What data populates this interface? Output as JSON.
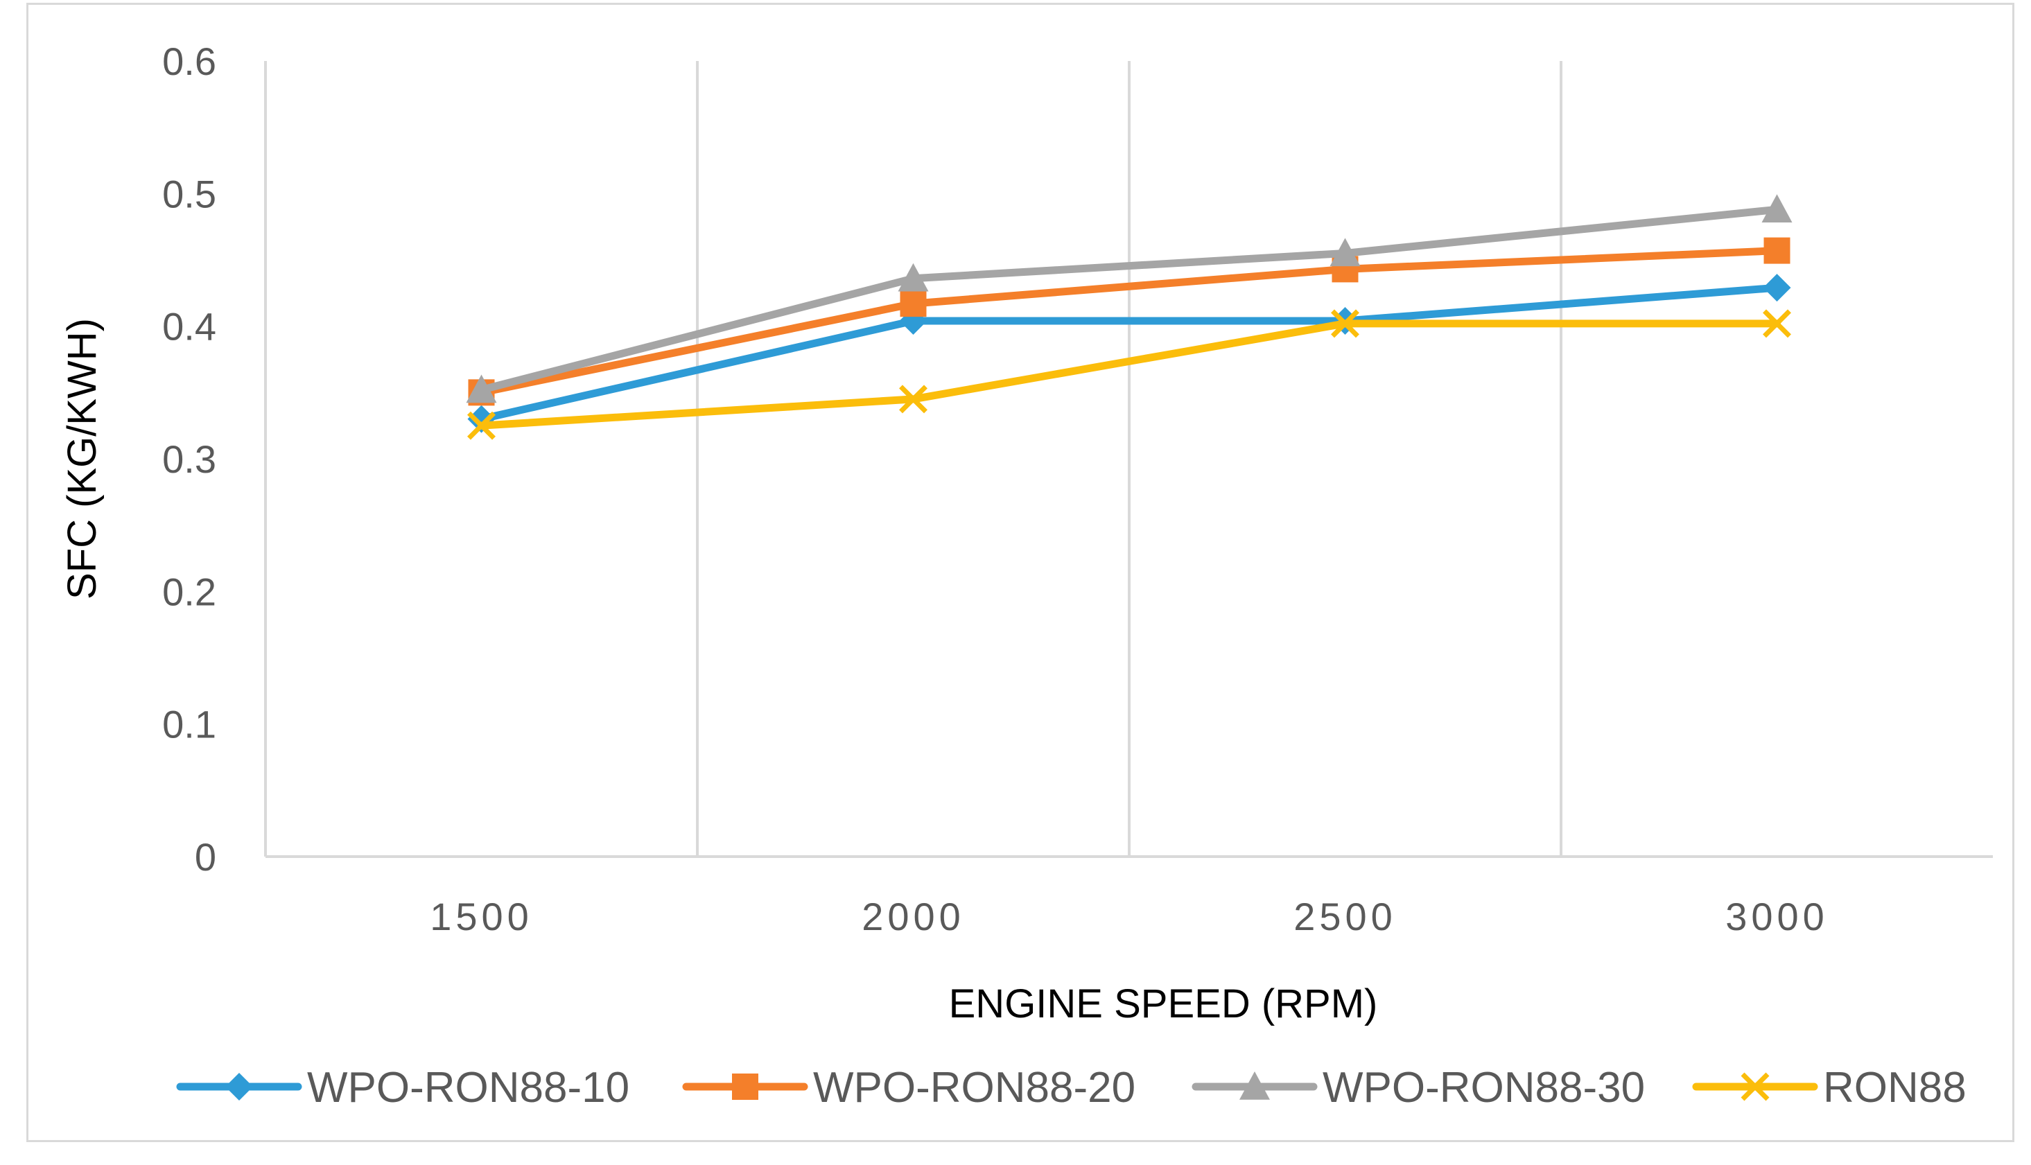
{
  "chart_data": {
    "type": "line",
    "title": "",
    "xlabel": "ENGINE SPEED (RPM)",
    "ylabel": "SFC (KG/KWH)",
    "categories": [
      "1500",
      "2000",
      "2500",
      "3000"
    ],
    "ylim": [
      0,
      0.6
    ],
    "yticks": [
      "0",
      "0.1",
      "0.2",
      "0.3",
      "0.4",
      "0.5",
      "0.6"
    ],
    "grid": "vertical",
    "legend_position": "bottom",
    "series": [
      {
        "name": "WPO-RON88-10",
        "values": [
          0.33,
          0.404,
          0.404,
          0.429
        ],
        "color": "#2e9bd6",
        "marker": "diamond"
      },
      {
        "name": "WPO-RON88-20",
        "values": [
          0.35,
          0.417,
          0.443,
          0.457
        ],
        "color": "#f47f2a",
        "marker": "square"
      },
      {
        "name": "WPO-RON88-30",
        "values": [
          0.352,
          0.436,
          0.455,
          0.488
        ],
        "color": "#a5a5a5",
        "marker": "triangle"
      },
      {
        "name": "RON88",
        "values": [
          0.325,
          0.345,
          0.402,
          0.402
        ],
        "color": "#fbbd0b",
        "marker": "x"
      }
    ]
  }
}
